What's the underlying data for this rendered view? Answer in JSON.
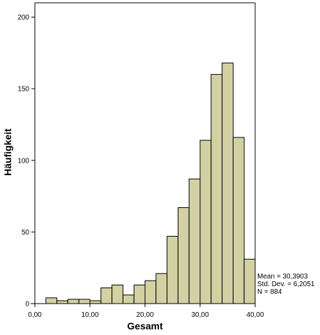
{
  "chart_data": {
    "type": "bar",
    "xlabel": "Gesamt",
    "ylabel": "Häufigkeit",
    "x_ticks": [
      "0,00",
      "10,00",
      "20,00",
      "30,00",
      "40,00"
    ],
    "y_ticks": [
      "0",
      "50",
      "100",
      "150",
      "200"
    ],
    "xlim": [
      0,
      40
    ],
    "ylim": [
      0,
      210
    ],
    "bin_width": 2,
    "bins": [
      {
        "start": 2,
        "end": 4,
        "count": 4
      },
      {
        "start": 4,
        "end": 6,
        "count": 2
      },
      {
        "start": 6,
        "end": 8,
        "count": 3
      },
      {
        "start": 8,
        "end": 10,
        "count": 3
      },
      {
        "start": 10,
        "end": 12,
        "count": 2
      },
      {
        "start": 12,
        "end": 14,
        "count": 11
      },
      {
        "start": 14,
        "end": 16,
        "count": 13
      },
      {
        "start": 16,
        "end": 18,
        "count": 6
      },
      {
        "start": 18,
        "end": 20,
        "count": 13
      },
      {
        "start": 20,
        "end": 22,
        "count": 16
      },
      {
        "start": 22,
        "end": 24,
        "count": 21
      },
      {
        "start": 24,
        "end": 26,
        "count": 47
      },
      {
        "start": 26,
        "end": 28,
        "count": 67
      },
      {
        "start": 28,
        "end": 30,
        "count": 87
      },
      {
        "start": 30,
        "end": 32,
        "count": 114
      },
      {
        "start": 32,
        "end": 34,
        "count": 160
      },
      {
        "start": 34,
        "end": 36,
        "count": 168
      },
      {
        "start": 36,
        "end": 38,
        "count": 116
      },
      {
        "start": 38,
        "end": 40,
        "count": 31
      }
    ],
    "stats": [
      "Mean = 30,3903",
      "Std. Dev. = 6,2051",
      "N = 884"
    ],
    "bar_color": "#d3d0a4",
    "bar_stroke": "#000000",
    "grid": false
  }
}
